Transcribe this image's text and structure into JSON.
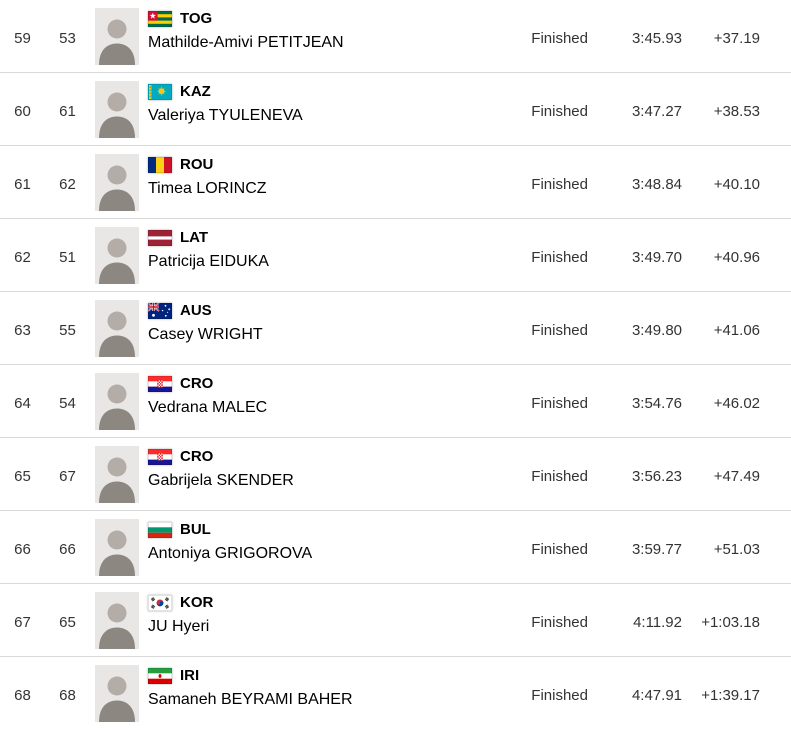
{
  "colors": {
    "background": "#ffffff",
    "divider": "#d9d9d9",
    "secondary_text": "#333333",
    "primary_text": "#000000",
    "photo_background": "#e9e7e6"
  },
  "table": {
    "rows": [
      {
        "rank": "59",
        "bib": "53",
        "country": "TOG",
        "flag_icon": "flag-tog-icon",
        "name": "Mathilde-Amivi PETITJEAN",
        "status": "Finished",
        "time": "3:45.93",
        "diff": "+37.19"
      },
      {
        "rank": "60",
        "bib": "61",
        "country": "KAZ",
        "flag_icon": "flag-kaz-icon",
        "name": "Valeriya TYULENEVA",
        "status": "Finished",
        "time": "3:47.27",
        "diff": "+38.53"
      },
      {
        "rank": "61",
        "bib": "62",
        "country": "ROU",
        "flag_icon": "flag-rou-icon",
        "name": "Timea LORINCZ",
        "status": "Finished",
        "time": "3:48.84",
        "diff": "+40.10"
      },
      {
        "rank": "62",
        "bib": "51",
        "country": "LAT",
        "flag_icon": "flag-lat-icon",
        "name": "Patricija EIDUKA",
        "status": "Finished",
        "time": "3:49.70",
        "diff": "+40.96"
      },
      {
        "rank": "63",
        "bib": "55",
        "country": "AUS",
        "flag_icon": "flag-aus-icon",
        "name": "Casey WRIGHT",
        "status": "Finished",
        "time": "3:49.80",
        "diff": "+41.06"
      },
      {
        "rank": "64",
        "bib": "54",
        "country": "CRO",
        "flag_icon": "flag-cro-icon",
        "name": "Vedrana MALEC",
        "status": "Finished",
        "time": "3:54.76",
        "diff": "+46.02"
      },
      {
        "rank": "65",
        "bib": "67",
        "country": "CRO",
        "flag_icon": "flag-cro-icon",
        "name": "Gabrijela SKENDER",
        "status": "Finished",
        "time": "3:56.23",
        "diff": "+47.49"
      },
      {
        "rank": "66",
        "bib": "66",
        "country": "BUL",
        "flag_icon": "flag-bul-icon",
        "name": "Antoniya GRIGOROVA",
        "status": "Finished",
        "time": "3:59.77",
        "diff": "+51.03"
      },
      {
        "rank": "67",
        "bib": "65",
        "country": "KOR",
        "flag_icon": "flag-kor-icon",
        "name": "JU Hyeri",
        "status": "Finished",
        "time": "4:11.92",
        "diff": "+1:03.18"
      },
      {
        "rank": "68",
        "bib": "68",
        "country": "IRI",
        "flag_icon": "flag-iri-icon",
        "name": "Samaneh BEYRAMI BAHER",
        "status": "Finished",
        "time": "4:47.91",
        "diff": "+1:39.17"
      }
    ]
  }
}
